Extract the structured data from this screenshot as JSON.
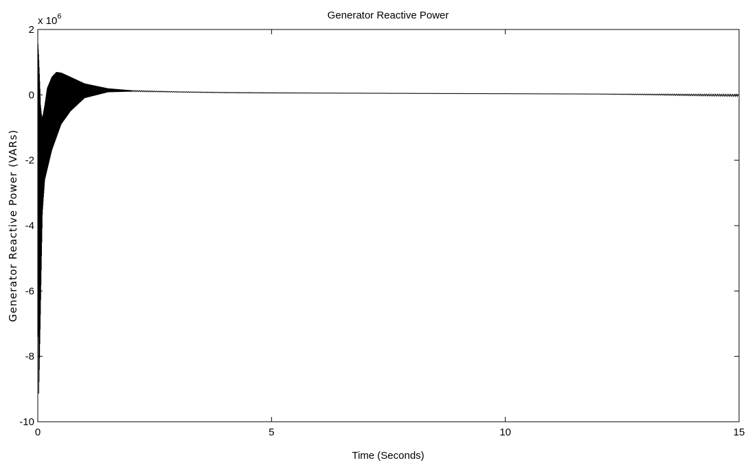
{
  "chart_data": {
    "type": "line",
    "title": "Generator Reactive Power",
    "xlabel": "Time (Seconds)",
    "ylabel": "Generator Reactive Power (VARs)",
    "y_exponent_label": "x 10",
    "y_exponent_power": "6",
    "xlim": [
      0,
      15
    ],
    "ylim": [
      -10,
      2
    ],
    "x_ticks": [
      "0",
      "5",
      "10",
      "15"
    ],
    "y_ticks": [
      "2",
      "0",
      "-2",
      "-4",
      "-6",
      "-8",
      "-10"
    ],
    "grid": false,
    "series": [
      {
        "color": "#000000",
        "x": [
          0,
          0.02,
          0.04,
          0.06,
          0.08,
          0.1,
          0.15,
          0.2,
          0.3,
          0.4,
          0.5,
          0.7,
          1.0,
          1.5,
          2.0,
          3.0,
          4.0,
          5.0,
          6.0,
          8.0,
          10.0,
          12.0,
          15.0
        ],
        "upper": [
          1.7,
          1.2,
          0.5,
          -0.3,
          -0.6,
          -0.7,
          -0.3,
          0.2,
          0.55,
          0.7,
          0.68,
          0.55,
          0.35,
          0.2,
          0.14,
          0.1,
          0.08,
          0.07,
          0.06,
          0.05,
          0.04,
          0.03,
          0.02
        ],
        "lower": [
          -2.0,
          -9.2,
          -8.0,
          -6.5,
          -5.0,
          -3.6,
          -2.6,
          -2.3,
          -1.7,
          -1.3,
          -0.9,
          -0.5,
          -0.1,
          0.08,
          0.1,
          0.08,
          0.06,
          0.05,
          0.05,
          0.04,
          0.03,
          0.02,
          -0.05
        ]
      }
    ]
  }
}
